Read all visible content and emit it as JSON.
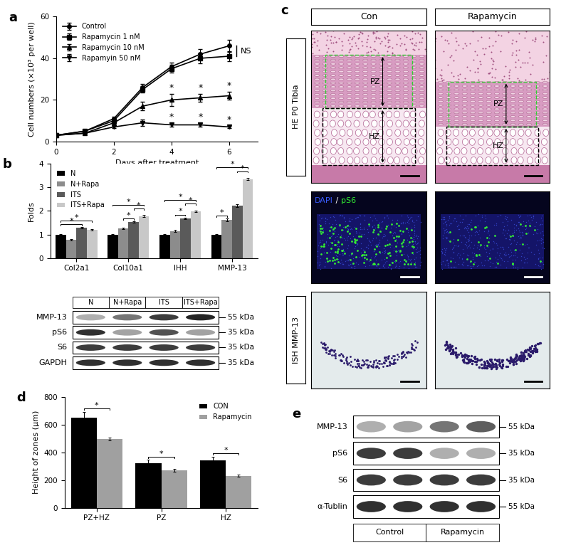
{
  "chart_data": [
    {
      "panel": "a",
      "type": "line",
      "x": [
        0,
        1,
        2,
        3,
        4,
        5,
        6
      ],
      "xlabel": "Days after treatment",
      "ylabel": "Cell numbers (×10³ per well)",
      "xlim": [
        0,
        7
      ],
      "xticks": [
        0,
        2,
        4,
        6
      ],
      "ylim": [
        0,
        60
      ],
      "yticks": [
        0,
        20,
        40,
        60
      ],
      "legend": "upper left",
      "series": [
        {
          "name": "Control",
          "color": "#000000",
          "marker": "circle",
          "values": [
            3,
            5,
            11,
            26,
            36,
            42,
            46
          ],
          "errors": [
            0.3,
            0.4,
            0.8,
            1.5,
            2,
            2.5,
            3
          ]
        },
        {
          "name": "Rapamycin 1 nM",
          "color": "#000000",
          "marker": "square",
          "values": [
            3,
            5,
            10,
            25,
            35,
            40,
            41
          ],
          "errors": [
            0.3,
            0.4,
            0.8,
            1.5,
            2,
            2.5,
            2.5
          ]
        },
        {
          "name": "Rapamycin 10 nM",
          "color": "#000000",
          "marker": "triangle_up",
          "values": [
            3,
            4,
            9,
            17,
            20,
            21,
            22
          ],
          "errors": [
            0.3,
            0.3,
            0.8,
            2,
            3,
            2,
            2
          ]
        },
        {
          "name": "Rapamyin 50 nM",
          "color": "#000000",
          "marker": "triangle_down",
          "values": [
            3,
            4,
            7,
            9,
            8,
            8,
            7
          ],
          "errors": [
            0.3,
            0.3,
            0.6,
            1.5,
            1,
            0.8,
            0.6
          ]
        }
      ],
      "annotations": [
        {
          "text": "NS",
          "x": 6,
          "between": [
            "Control",
            "Rapamycin 1 nM"
          ]
        },
        {
          "text": "*",
          "x": [
            4,
            5,
            6
          ],
          "series": "Rapamycin 10 nM"
        },
        {
          "text": "*",
          "x": [
            4,
            5,
            6
          ],
          "series": "Rapamyin 50 nM"
        }
      ]
    },
    {
      "panel": "b",
      "type": "bar",
      "categories": [
        "Col2a1",
        "Col10a1",
        "IHH",
        "MMP-13"
      ],
      "ylabel": "Folds",
      "ylim": [
        0,
        4
      ],
      "yticks": [
        0,
        1,
        2,
        3,
        4
      ],
      "legend": "upper left",
      "series": [
        {
          "name": "N",
          "color": "#000000",
          "values": [
            1,
            1,
            1,
            1
          ],
          "errors": [
            0.02,
            0.02,
            0.02,
            0.02
          ]
        },
        {
          "name": "N+Rapa",
          "color": "#8c8c8c",
          "values": [
            0.78,
            1.27,
            1.15,
            1.62
          ],
          "errors": [
            0.03,
            0.03,
            0.04,
            0.05
          ]
        },
        {
          "name": "ITS",
          "color": "#5a5a5a",
          "values": [
            1.28,
            1.52,
            1.68,
            2.22
          ],
          "errors": [
            0.03,
            0.03,
            0.04,
            0.06
          ]
        },
        {
          "name": "ITS+Rapa",
          "color": "#c8c8c8",
          "values": [
            1.2,
            1.78,
            1.98,
            3.35
          ],
          "errors": [
            0.03,
            0.04,
            0.04,
            0.05
          ]
        }
      ],
      "brackets": [
        {
          "category": "Col2a1",
          "from": "N",
          "to": "ITS",
          "text": "*"
        },
        {
          "category": "Col2a1",
          "from": "N",
          "to": "ITS+Rapa",
          "text": "*"
        },
        {
          "category": "Col10a1",
          "from": "N+Rapa",
          "to": "ITS",
          "text": "*"
        },
        {
          "category": "Col10a1",
          "from": "ITS",
          "to": "ITS+Rapa",
          "text": "*"
        },
        {
          "category": "Col10a1",
          "from": "N",
          "to": "ITS+Rapa",
          "text": "*"
        },
        {
          "category": "IHH",
          "from": "N+Rapa",
          "to": "ITS",
          "text": "*"
        },
        {
          "category": "IHH",
          "from": "ITS",
          "to": "ITS+Rapa",
          "text": "*"
        },
        {
          "category": "IHH",
          "from": "N",
          "to": "ITS+Rapa",
          "text": "*"
        },
        {
          "category": "MMP-13",
          "from": "N",
          "to": "N+Rapa",
          "text": "*"
        },
        {
          "category": "MMP-13",
          "from": "ITS",
          "to": "ITS+Rapa",
          "text": "*"
        },
        {
          "category": "MMP-13",
          "from": "N",
          "to": "ITS+Rapa",
          "text": "*"
        }
      ]
    },
    {
      "panel": "d",
      "type": "bar",
      "categories": [
        "PZ+HZ",
        "PZ",
        "HZ"
      ],
      "ylabel": "Height of zones (μm)",
      "ylim": [
        0,
        800
      ],
      "yticks": [
        0,
        200,
        400,
        600,
        800
      ],
      "legend": "upper right",
      "series": [
        {
          "name": "CON",
          "color": "#000000",
          "values": [
            650,
            320,
            340
          ],
          "errors": [
            40,
            25,
            30
          ]
        },
        {
          "name": "Rapamycin",
          "color": "#a0a0a0",
          "values": [
            495,
            270,
            230
          ],
          "errors": [
            10,
            10,
            8
          ]
        }
      ],
      "brackets": [
        {
          "category": "PZ+HZ",
          "from": "CON",
          "to": "Rapamycin",
          "text": "*"
        },
        {
          "category": "PZ",
          "from": "CON",
          "to": "Rapamycin",
          "text": "*"
        },
        {
          "category": "HZ",
          "from": "CON",
          "to": "Rapamycin",
          "text": "*"
        }
      ]
    }
  ],
  "blots": [
    {
      "panel": "b",
      "lanes": [
        "N",
        "N+Rapa",
        "ITS",
        "ITS+Rapa"
      ],
      "rows": [
        {
          "name": "MMP-13",
          "mw": "55 kDa",
          "bands": [
            0.35,
            0.6,
            0.85,
            0.95
          ]
        },
        {
          "name": "pS6",
          "mw": "35 kDa",
          "bands": [
            0.9,
            0.4,
            0.75,
            0.4
          ]
        },
        {
          "name": "S6",
          "mw": "35 kDa",
          "bands": [
            0.85,
            0.85,
            0.85,
            0.85
          ]
        },
        {
          "name": "GAPDH",
          "mw": "35 kDa",
          "bands": [
            0.9,
            0.9,
            0.9,
            0.9
          ]
        }
      ]
    },
    {
      "panel": "e",
      "groups": [
        {
          "label": "Control",
          "lanes": 2
        },
        {
          "label": "Rapamycin",
          "lanes": 2
        }
      ],
      "rows": [
        {
          "name": "MMP-13",
          "mw": "55 kDa",
          "bands": [
            0.35,
            0.4,
            0.6,
            0.7
          ]
        },
        {
          "name": "pS6",
          "mw": "35 kDa",
          "bands": [
            0.85,
            0.85,
            0.35,
            0.35
          ]
        },
        {
          "name": "S6",
          "mw": "35 kDa",
          "bands": [
            0.85,
            0.85,
            0.85,
            0.85
          ]
        },
        {
          "name": "α-Tublin",
          "mw": "55 kDa",
          "bands": [
            0.9,
            0.9,
            0.9,
            0.9
          ]
        }
      ]
    }
  ],
  "histology": {
    "panel": "c",
    "columns": [
      "Con",
      "Rapamycin"
    ],
    "zones": [
      "PZ",
      "HZ"
    ],
    "rows": [
      {
        "kind": "HE",
        "label": "HE P0 Tibia"
      },
      {
        "kind": "fluorescence",
        "label_parts": [
          {
            "text": "DAPI",
            "color": "#3a5cff"
          },
          {
            "text": " / ",
            "color": "#ffffff"
          },
          {
            "text": "pS6",
            "color": "#33ee33"
          }
        ]
      },
      {
        "kind": "ISH",
        "label": "ISH MMP-13"
      }
    ]
  }
}
